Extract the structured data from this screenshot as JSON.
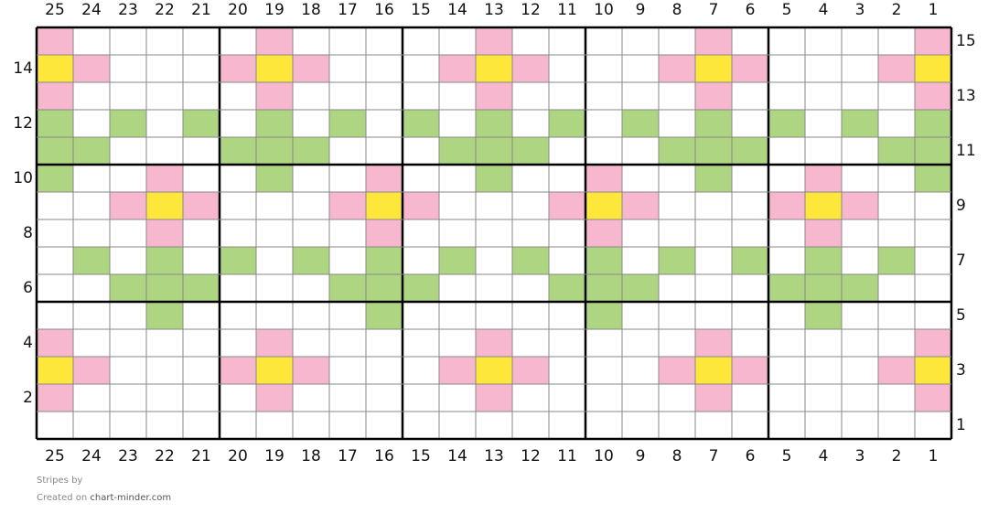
{
  "columns": [
    25,
    24,
    23,
    22,
    21,
    20,
    19,
    18,
    17,
    16,
    15,
    14,
    13,
    12,
    11,
    10,
    9,
    8,
    7,
    6,
    5,
    4,
    3,
    2,
    1
  ],
  "rows": [
    15,
    14,
    13,
    12,
    11,
    10,
    9,
    8,
    7,
    6,
    5,
    4,
    3,
    2,
    1
  ],
  "palette": {
    "W": "#ffffff",
    "P": "#f7b8cf",
    "Y": "#fde73b",
    "G": "#aed581"
  },
  "grid": [
    "PWWWWWPWWWWWPWWWWWPWWWWWP",
    "YPWWWPYPWWWPYPWWWPYPWWWPY",
    "PWWWWWPWWWWWPWWWWWPWWWWWP",
    "GWGWGWGWGWGWGWGWGWGWGWGWG",
    "GGWWWGGGWWWGGGWWWGGGWWWGG",
    "GWWPWWGWWPWWGWWPWWGWWPWWG",
    "WWPYPWWWPYPWWWPYPWWWPYPWW",
    "WWWPWWWWWPWWWWWPWWWWWPWWW",
    "WGWGWGWGWGWGWGWGWGWGWGWGW",
    "WWGGGWWWGGGWWWGGGWWWGGGWW",
    "WWWGWWWWWGWWWWWGWWWWWGWWW",
    "PWWWWWPWWWWWPWWWWWPWWWWWP",
    "YPWWWPYPWWWPYPWWWPYPWWWPY",
    "PWWWWWPWWWWWPWWWWWPWWWWWP",
    "WWWWWWWWWWWWWWWWWWWWWWWWW"
  ],
  "footer": {
    "title": "Stripes",
    "by": "by",
    "created": "Created on",
    "site": "chart-minder.com"
  }
}
